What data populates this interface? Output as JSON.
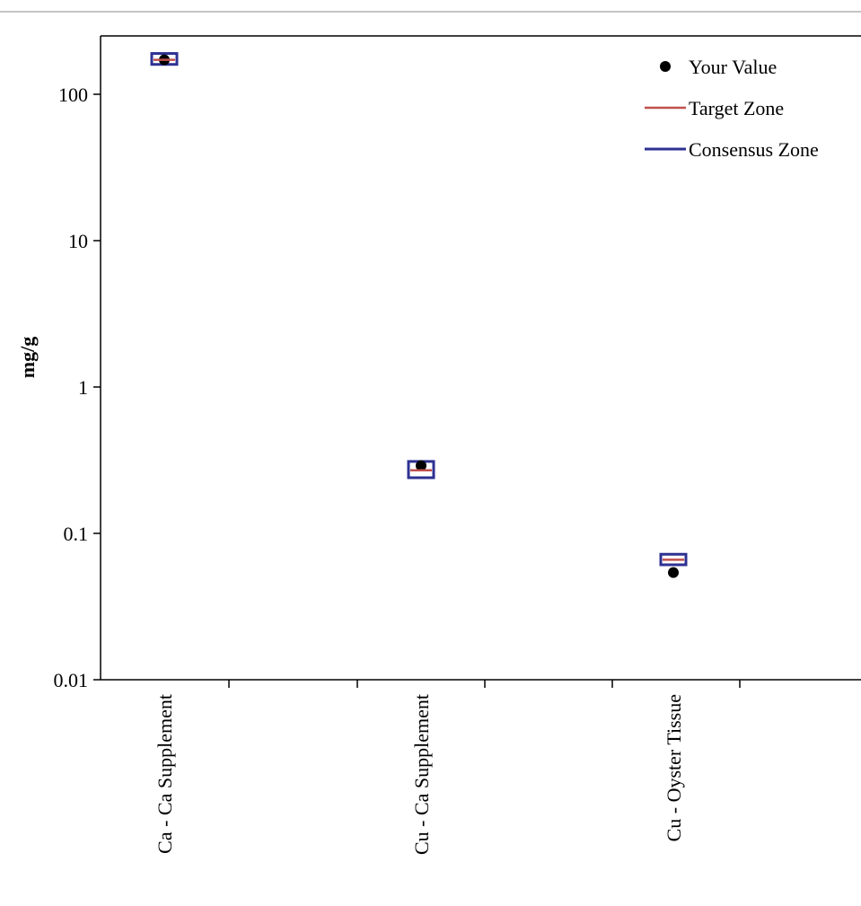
{
  "chart_data": {
    "type": "scatter",
    "ylabel": "mg/g",
    "yscale": "log",
    "ylim": [
      0.01,
      200
    ],
    "yticks": [
      {
        "value": 100,
        "label": "100"
      },
      {
        "value": 10,
        "label": "10"
      },
      {
        "value": 1,
        "label": "1"
      },
      {
        "value": 0.1,
        "label": "0.1"
      },
      {
        "value": 0.01,
        "label": "0.01"
      }
    ],
    "categories": [
      "Ca - Ca Supplement",
      "Cu - Ca Supplement",
      "Cu - Oyster Tissue"
    ],
    "series": [
      {
        "name": "Your Value",
        "marker": "dot",
        "color": "#000000",
        "values": [
          172,
          0.29,
          0.054
        ]
      },
      {
        "name": "Target Zone",
        "marker": "line",
        "color": "#c0504d",
        "values": [
          172,
          0.27,
          0.066
        ]
      },
      {
        "name": "Consensus Zone",
        "marker": "box",
        "color": "#2e3192",
        "ranges": [
          [
            160,
            190
          ],
          [
            0.24,
            0.31
          ],
          [
            0.061,
            0.072
          ]
        ]
      }
    ],
    "legend_position": "top-right",
    "grid": false
  }
}
